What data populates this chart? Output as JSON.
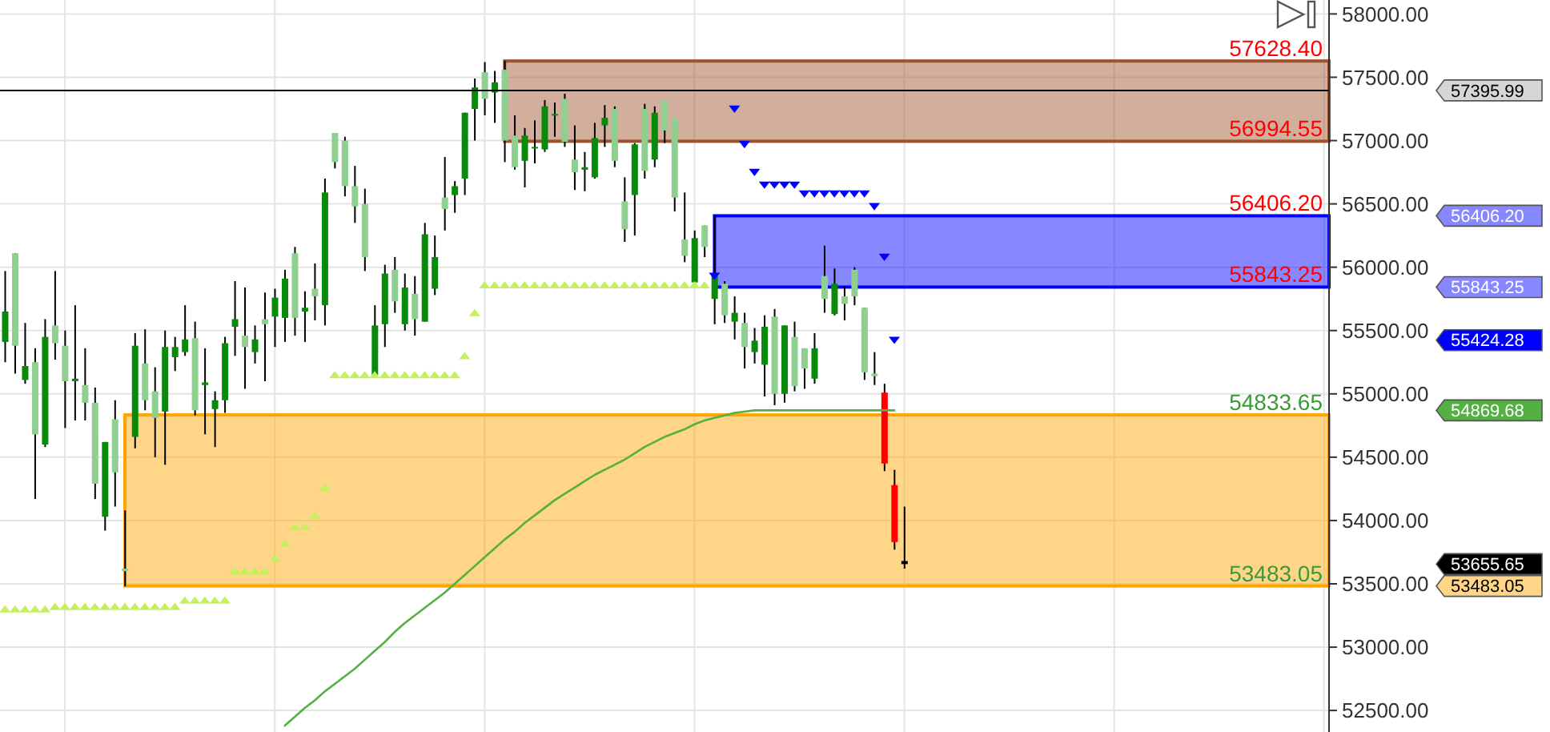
{
  "chart_data": {
    "type": "candlestick",
    "categories": [
      null,
      null,
      null,
      null,
      null,
      null,
      null,
      null,
      null,
      null,
      null,
      null,
      null,
      null,
      null,
      null,
      null,
      null,
      null,
      null,
      null,
      null,
      null,
      null,
      null,
      null,
      null,
      null,
      null,
      null,
      null,
      null,
      null,
      null,
      null,
      null,
      null,
      null,
      null,
      null,
      null,
      null,
      null,
      null,
      null,
      null,
      null,
      null,
      null,
      null,
      null,
      null,
      null,
      null,
      null,
      null,
      null,
      null,
      null,
      null,
      null,
      null,
      null,
      null,
      null,
      null,
      null,
      null,
      null,
      null,
      null,
      null,
      null,
      null,
      null,
      null,
      null,
      null,
      null,
      null,
      null,
      null,
      null,
      null,
      null,
      null,
      null,
      null,
      null,
      null,
      null,
      null,
      null,
      null,
      null,
      null,
      null,
      null,
      null,
      null,
      null,
      null,
      null,
      null,
      null,
      null,
      null,
      null,
      null,
      null,
      null,
      null,
      null,
      null,
      null,
      null,
      null,
      null,
      null,
      null,
      null,
      null,
      null,
      null,
      null,
      null,
      null,
      null,
      null,
      null,
      null,
      null,
      null
    ],
    "ohlc": [
      [
        55410,
        55970,
        55250,
        55650
      ],
      [
        56110,
        56110,
        55160,
        55380
      ],
      [
        55110,
        55560,
        55080,
        55220
      ],
      [
        55250,
        55360,
        54170,
        54680
      ],
      [
        54600,
        55590,
        54580,
        55450
      ],
      [
        55540,
        55970,
        55270,
        55400
      ],
      [
        55380,
        55500,
        54730,
        55100
      ],
      [
        55100,
        55700,
        54790,
        55120
      ],
      [
        55070,
        55360,
        54790,
        54930
      ],
      [
        54930,
        55050,
        54170,
        54290
      ],
      [
        54030,
        54620,
        53920,
        54620
      ],
      [
        54800,
        54950,
        54110,
        54380
      ],
      [
        53620,
        54080,
        53480,
        53600
      ],
      [
        54660,
        55480,
        54570,
        55380
      ],
      [
        55240,
        55510,
        54870,
        54950
      ],
      [
        55020,
        55210,
        54500,
        54810
      ],
      [
        54860,
        55500,
        54440,
        55370
      ],
      [
        55290,
        55450,
        55180,
        55370
      ],
      [
        55330,
        55700,
        55300,
        55430
      ],
      [
        55440,
        55570,
        54830,
        54870
      ],
      [
        55070,
        55360,
        54680,
        55090
      ],
      [
        54880,
        55020,
        54580,
        54950
      ],
      [
        54950,
        55450,
        54850,
        55400
      ],
      [
        55530,
        55890,
        55300,
        55590
      ],
      [
        55460,
        55840,
        55040,
        55370
      ],
      [
        55330,
        55540,
        55240,
        55430
      ],
      [
        55590,
        55800,
        55100,
        55550
      ],
      [
        55610,
        55830,
        55370,
        55760
      ],
      [
        55600,
        55980,
        55410,
        55910
      ],
      [
        56110,
        56160,
        55460,
        55600
      ],
      [
        55650,
        55810,
        55410,
        55680
      ],
      [
        55830,
        56030,
        55580,
        55770
      ],
      [
        55700,
        56700,
        55540,
        56590
      ],
      [
        57060,
        57060,
        56780,
        56830
      ],
      [
        57000,
        57030,
        56560,
        56640
      ],
      [
        56640,
        56800,
        56350,
        56480
      ],
      [
        56500,
        56620,
        55970,
        56080
      ],
      [
        55150,
        55700,
        55150,
        55540
      ],
      [
        55550,
        56020,
        55370,
        55950
      ],
      [
        55980,
        56080,
        55640,
        55730
      ],
      [
        55550,
        55950,
        55500,
        55840
      ],
      [
        55790,
        55930,
        55460,
        55590
      ],
      [
        55570,
        56350,
        55570,
        56260
      ],
      [
        55830,
        56250,
        55780,
        56080
      ],
      [
        56550,
        56870,
        56290,
        56460
      ],
      [
        56570,
        56680,
        56430,
        56640
      ],
      [
        56700,
        57220,
        56570,
        57220
      ],
      [
        57250,
        57490,
        57000,
        57420
      ],
      [
        57540,
        57620,
        57200,
        57330
      ],
      [
        57380,
        57550,
        57140,
        57460
      ],
      [
        57560,
        57630,
        56830,
        57000
      ],
      [
        57040,
        57200,
        56770,
        56790
      ],
      [
        56840,
        57100,
        56630,
        57040
      ],
      [
        56940,
        57160,
        56820,
        56950
      ],
      [
        56930,
        57320,
        56910,
        57270
      ],
      [
        57200,
        57300,
        57030,
        57210
      ],
      [
        57330,
        57370,
        56950,
        56990
      ],
      [
        56850,
        57120,
        56610,
        56750
      ],
      [
        56770,
        56910,
        56600,
        56790
      ],
      [
        56710,
        57140,
        56700,
        57020
      ],
      [
        57120,
        57280,
        56950,
        57180
      ],
      [
        57250,
        57270,
        56790,
        56840
      ],
      [
        56520,
        56710,
        56200,
        56300
      ],
      [
        56570,
        56980,
        56250,
        56970
      ],
      [
        57250,
        57290,
        56700,
        56760
      ],
      [
        56850,
        57270,
        56790,
        57220
      ],
      [
        57320,
        57320,
        56980,
        57080
      ],
      [
        57180,
        57180,
        56440,
        56550
      ],
      [
        56220,
        56590,
        56040,
        56090
      ],
      [
        55880,
        56290,
        55870,
        56230
      ],
      [
        56330,
        56330,
        56080,
        56160
      ],
      [
        55750,
        56410,
        55550,
        55950
      ],
      [
        55870,
        55890,
        55560,
        55620
      ],
      [
        55570,
        55770,
        55430,
        55640
      ],
      [
        55560,
        55640,
        55200,
        55370
      ],
      [
        55330,
        55520,
        55240,
        55420
      ],
      [
        55230,
        55620,
        54980,
        55530
      ],
      [
        55610,
        55670,
        54910,
        55000
      ],
      [
        55000,
        55540,
        54930,
        55540
      ],
      [
        55450,
        55570,
        55020,
        55060
      ],
      [
        55360,
        55360,
        55040,
        55200
      ],
      [
        55120,
        55480,
        55080,
        55360
      ],
      [
        55930,
        56170,
        55640,
        55750
      ],
      [
        55630,
        55990,
        55620,
        55870
      ],
      [
        55770,
        55850,
        55580,
        55710
      ],
      [
        55980,
        56000,
        55700,
        55770
      ],
      [
        55680,
        55680,
        55110,
        55170
      ],
      [
        55160,
        55330,
        55070,
        55140
      ],
      [
        55010,
        55080,
        54390,
        54450
      ],
      [
        54280,
        54400,
        53770,
        53830
      ],
      [
        53680,
        54110,
        53620,
        53655.65
      ],
      null,
      null,
      null,
      null,
      null,
      null,
      null,
      null,
      null,
      null,
      null,
      null,
      null,
      null,
      null,
      null,
      null,
      null,
      null,
      null,
      null,
      null,
      null,
      null,
      null,
      null,
      null,
      null,
      null,
      null,
      null,
      null,
      null,
      null,
      null,
      null,
      null,
      null,
      null,
      null,
      null,
      null
    ],
    "colors": [
      "#0a8a0a",
      "#8fcf8f",
      "#0a8a0a",
      "#8fcf8f",
      "#0a8a0a",
      "#8fcf8f",
      "#8fcf8f",
      "#0a8a0a",
      "#8fcf8f",
      "#8fcf8f",
      "#0a8a0a",
      "#8fcf8f",
      "#8fcf8f",
      "#0a8a0a",
      "#8fcf8f",
      "#8fcf8f",
      "#0a8a0a",
      "#0a8a0a",
      "#0a8a0a",
      "#8fcf8f",
      "#0a8a0a",
      "#0a8a0a",
      "#0a8a0a",
      "#0a8a0a",
      "#8fcf8f",
      "#0a8a0a",
      "#8fcf8f",
      "#0a8a0a",
      "#0a8a0a",
      "#8fcf8f",
      "#0a8a0a",
      "#8fcf8f",
      "#0a8a0a",
      "#8fcf8f",
      "#8fcf8f",
      "#8fcf8f",
      "#8fcf8f",
      "#0a8a0a",
      "#0a8a0a",
      "#8fcf8f",
      "#0a8a0a",
      "#8fcf8f",
      "#0a8a0a",
      "#0a8a0a",
      "#8fcf8f",
      "#0a8a0a",
      "#0a8a0a",
      "#0a8a0a",
      "#8fcf8f",
      "#0a8a0a",
      "#8fcf8f",
      "#8fcf8f",
      "#0a8a0a",
      "#0a8a0a",
      "#0a8a0a",
      "#0a8a0a",
      "#8fcf8f",
      "#8fcf8f",
      "#0a8a0a",
      "#0a8a0a",
      "#0a8a0a",
      "#8fcf8f",
      "#8fcf8f",
      "#0a8a0a",
      "#8fcf8f",
      "#0a8a0a",
      "#8fcf8f",
      "#8fcf8f",
      "#8fcf8f",
      "#0a8a0a",
      "#8fcf8f",
      "#0a8a0a",
      "#8fcf8f",
      "#0a8a0a",
      "#8fcf8f",
      "#0a8a0a",
      "#0a8a0a",
      "#8fcf8f",
      "#0a8a0a",
      "#8fcf8f",
      "#8fcf8f",
      "#0a8a0a",
      "#8fcf8f",
      "#0a8a0a",
      "#8fcf8f",
      "#8fcf8f",
      "#8fcf8f",
      "#8fcf8f",
      "#ff0000",
      "#ff0000",
      "#000000",
      null,
      null,
      null,
      null,
      null,
      null,
      null,
      null,
      null,
      null,
      null,
      null,
      null,
      null,
      null,
      null,
      null,
      null,
      null,
      null,
      null,
      null,
      null,
      null,
      null,
      null,
      null,
      null,
      null,
      null,
      null,
      null,
      null,
      null,
      null,
      null,
      null,
      null,
      null,
      null,
      null,
      null
    ],
    "series": [
      {
        "type": "line",
        "color": "#55b043",
        "values": [
          null,
          null,
          null,
          null,
          null,
          null,
          null,
          null,
          null,
          null,
          null,
          null,
          null,
          null,
          null,
          null,
          null,
          null,
          null,
          null,
          null,
          null,
          null,
          null,
          null,
          null,
          null,
          null,
          52380,
          52450,
          52520,
          52580,
          52650,
          52710,
          52770,
          52830,
          52900,
          52970,
          53040,
          53120,
          53190,
          53250,
          53310,
          53370,
          53430,
          53500,
          53570,
          53640,
          53710,
          53780,
          53850,
          53910,
          53980,
          54040,
          54100,
          54160,
          54210,
          54260,
          54310,
          54360,
          54400,
          54440,
          54480,
          54530,
          54580,
          54620,
          54660,
          54690,
          54720,
          54760,
          54790,
          54810,
          54830,
          54850,
          54860,
          54870,
          54870,
          54870,
          54870,
          54870,
          54870,
          54870,
          54870,
          54870,
          54870,
          54870,
          54870,
          54870,
          54870,
          54869.68,
          null,
          null,
          null,
          null,
          null,
          null,
          null,
          null,
          null,
          null,
          null,
          null,
          null,
          null,
          null,
          null,
          null,
          null,
          null,
          null,
          null,
          null,
          null,
          null,
          null,
          null,
          null,
          null,
          null,
          null,
          null,
          null,
          null,
          null,
          null,
          null,
          null,
          null,
          null,
          null,
          null,
          null,
          null
        ]
      },
      {
        "type": "scatter",
        "color": "#c4f060",
        "marker": "triangle",
        "values": [
          53300,
          53300,
          53300,
          53300,
          53300,
          53320,
          53320,
          53320,
          53320,
          53320,
          53320,
          53320,
          53320,
          53320,
          53320,
          53320,
          53320,
          53320,
          53370,
          53370,
          53370,
          53370,
          53370,
          53600,
          53600,
          53600,
          53600,
          53700,
          53820,
          53950,
          53950,
          54040,
          54260,
          55150,
          55150,
          55150,
          55150,
          55150,
          55150,
          55150,
          55150,
          55150,
          55150,
          55150,
          55150,
          55150,
          55300,
          55640,
          55860,
          55860,
          55860,
          55860,
          55860,
          55860,
          55860,
          55860,
          55860,
          55860,
          55860,
          55860,
          55860,
          55860,
          55860,
          55860,
          55860,
          55860,
          55860,
          55860,
          55860,
          55860,
          55860,
          null,
          null,
          null,
          null,
          null,
          null,
          null,
          null,
          null,
          null,
          null,
          null,
          null,
          null,
          null,
          null,
          null,
          null,
          null,
          null,
          null,
          null,
          null,
          null,
          null,
          null,
          null,
          null,
          null,
          null,
          null,
          null,
          null,
          null,
          null,
          null,
          null,
          null,
          null,
          null,
          null,
          null,
          null,
          null,
          null,
          null,
          null,
          null,
          null,
          null,
          null,
          null,
          null,
          null,
          null,
          null,
          null,
          null,
          null,
          null,
          null,
          null
        ]
      },
      {
        "type": "scatter",
        "color": "#0000ff",
        "marker": "triangle",
        "values": [
          null,
          null,
          null,
          null,
          null,
          null,
          null,
          null,
          null,
          null,
          null,
          null,
          null,
          null,
          null,
          null,
          null,
          null,
          null,
          null,
          null,
          null,
          null,
          null,
          null,
          null,
          null,
          null,
          null,
          null,
          null,
          null,
          null,
          null,
          null,
          null,
          null,
          null,
          null,
          null,
          null,
          null,
          null,
          null,
          null,
          null,
          null,
          null,
          null,
          null,
          null,
          null,
          null,
          null,
          null,
          null,
          null,
          null,
          null,
          null,
          null,
          null,
          null,
          null,
          null,
          null,
          null,
          null,
          null,
          null,
          null,
          55930,
          null,
          57250,
          56970,
          56750,
          56650,
          56650,
          56650,
          56650,
          56580,
          56580,
          56580,
          56580,
          56580,
          56580,
          56580,
          56480,
          56080,
          55424.28,
          null,
          null,
          null,
          null,
          null,
          null,
          null,
          null,
          null,
          null,
          null,
          null,
          null,
          null,
          null,
          null,
          null,
          null,
          null,
          null,
          null,
          null,
          null,
          null,
          null,
          null,
          null,
          null,
          null,
          null,
          null,
          null,
          null,
          null,
          null,
          null,
          null,
          null,
          null,
          null,
          null,
          null,
          null
        ]
      }
    ],
    "ylim": [
      52330,
      58110
    ],
    "yticks": [
      {
        "value": 52500,
        "label": "52500.00"
      },
      {
        "value": 53000,
        "label": "53000.00"
      },
      {
        "value": 53500,
        "label": "53500.00"
      },
      {
        "value": 54000,
        "label": "54000.00"
      },
      {
        "value": 54500,
        "label": "54500.00"
      },
      {
        "value": 55000,
        "label": "55000.00"
      },
      {
        "value": 55500,
        "label": "55500.00"
      },
      {
        "value": 56000,
        "label": "56000.00"
      },
      {
        "value": 56500,
        "label": "56500.00"
      },
      {
        "value": 57000,
        "label": "57000.00"
      },
      {
        "value": 57500,
        "label": "57500.00"
      },
      {
        "value": 58000,
        "label": "58000.00"
      }
    ],
    "y2lim": [
      52330,
      58110
    ],
    "y2ticks": [
      {
        "value": 56406.2,
        "label": "56406.20"
      },
      {
        "value": 55843.25,
        "label": "55843.25"
      },
      {
        "value": 55424.28,
        "label": "55424.28"
      },
      {
        "value": 54869.68,
        "label": "54869.68"
      },
      {
        "value": 53655.65,
        "label": "53655.65"
      },
      {
        "value": 53483.05,
        "label": "53483.05"
      }
    ],
    "ref_lines": [
      {
        "axis": "y",
        "value": 57395.99,
        "label": "57395.99",
        "color": "#000000"
      }
    ],
    "bands": [
      {
        "axis": "y",
        "from": 56994.55,
        "to": 57628.4,
        "color": "#a0522d"
      },
      {
        "axis": "y",
        "from": 55843.25,
        "to": 56406.2,
        "color": "#0000ff"
      },
      {
        "axis": "y",
        "from": 53483.05,
        "to": 54833.65,
        "color": "#ffa500"
      }
    ],
    "annotations": [
      {
        "text": "57628.40",
        "y": 57628.4
      },
      {
        "text": "56994.55",
        "y": 56994.55
      },
      {
        "text": "56406.20",
        "y": 56406.2
      },
      {
        "text": "55843.25",
        "y": 55843.25
      },
      {
        "text": "54833.65",
        "y": 54833.65
      },
      {
        "text": "53483.05",
        "y": 53483.05
      }
    ],
    "grid": "y"
  }
}
